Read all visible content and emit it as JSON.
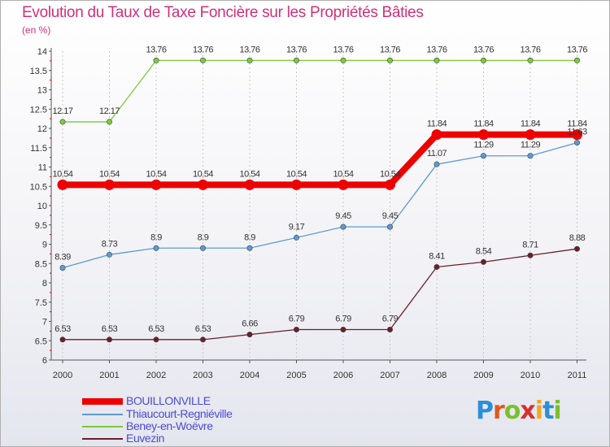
{
  "title": "Evolution du Taux de Taxe Foncière sur les Propriétés Bâties",
  "unit_label": "(en %)",
  "logo_text": "Proxiti",
  "chart_data": {
    "type": "line",
    "x": [
      "2000",
      "2001",
      "2002",
      "2003",
      "2004",
      "2005",
      "2006",
      "2007",
      "2008",
      "2009",
      "2010",
      "2011"
    ],
    "ylim": [
      6,
      14
    ],
    "yticks": [
      "6",
      "6.5",
      "7",
      "7.5",
      "8",
      "8.5",
      "9",
      "9.5",
      "10",
      "10.5",
      "11",
      "11.5",
      "12",
      "12.5",
      "13",
      "13.5",
      "14"
    ],
    "grid": "vertical dashed",
    "series": [
      {
        "name": "BOUILLONVILLE",
        "color": "#ee0000",
        "values": [
          10.54,
          10.54,
          10.54,
          10.54,
          10.54,
          10.54,
          10.54,
          10.54,
          11.84,
          11.84,
          11.84,
          11.84
        ],
        "labels": [
          "10.54",
          "10.54",
          "10.54",
          "10.54",
          "10.54",
          "10.54",
          "10.54",
          "10.54",
          "11.84",
          "11.84",
          "11.84",
          "11.84"
        ]
      },
      {
        "name": "Thiaucourt-Regniéville",
        "color": "#5b9bd5",
        "values": [
          8.39,
          8.73,
          8.9,
          8.9,
          8.9,
          9.17,
          9.45,
          9.45,
          11.07,
          11.29,
          11.29,
          11.63
        ],
        "labels": [
          "8.39",
          "8.73",
          "8.9",
          "8.9",
          "8.9",
          "9.17",
          "9.45",
          "9.45",
          "11.07",
          "11.29",
          "11.29",
          "11.63"
        ]
      },
      {
        "name": "Beney-en-Woëvre",
        "color": "#7acc3a",
        "values": [
          12.17,
          12.17,
          13.76,
          13.76,
          13.76,
          13.76,
          13.76,
          13.76,
          13.76,
          13.76,
          13.76,
          13.76
        ],
        "labels": [
          "12.17",
          "12.17",
          "13.76",
          "13.76",
          "13.76",
          "13.76",
          "13.76",
          "13.76",
          "13.76",
          "13.76",
          "13.76",
          "13.76"
        ]
      },
      {
        "name": "Euvezin",
        "color": "#6b1f2a",
        "values": [
          6.53,
          6.53,
          6.53,
          6.53,
          6.66,
          6.79,
          6.79,
          6.79,
          8.41,
          8.54,
          8.71,
          8.88
        ],
        "labels": [
          "6.53",
          "6.53",
          "6.53",
          "6.53",
          "6.66",
          "6.79",
          "6.79",
          "6.79",
          "8.41",
          "8.54",
          "8.71",
          "8.88"
        ]
      }
    ]
  }
}
